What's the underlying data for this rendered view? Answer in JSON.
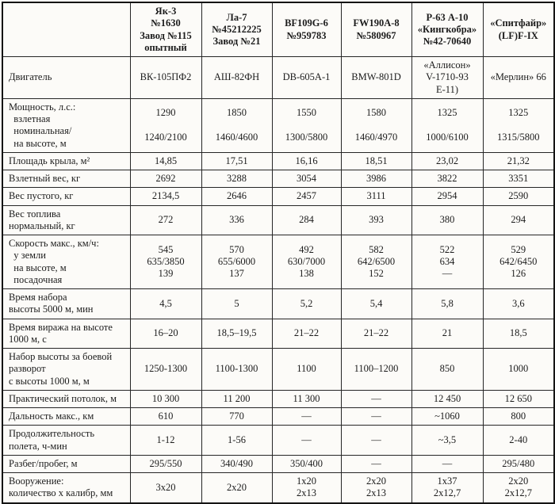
{
  "table": {
    "headers": [
      {
        "text": ""
      },
      {
        "text": "Як-3\n№1630\nЗавод №115\nопытный"
      },
      {
        "text": "Ла-7\n№45212225\nЗавод №21"
      },
      {
        "text": "BF109G-6\n№959783"
      },
      {
        "text": "FW190A-8\n№580967"
      },
      {
        "text": "Р-63 А-10\n«Кингкобра»\n№42-70640"
      },
      {
        "text": "«Спитфайр»\n(LF)F-IX"
      }
    ],
    "rows": [
      {
        "label": "Двигатель",
        "values": [
          "ВК-105ПФ2",
          "АШ-82ФН",
          "DB-605A-1",
          "BMW-801D",
          "«Аллисон»\nV-1710-93\nЕ-11)",
          "«Мерлин» 66"
        ]
      },
      {
        "label": "Мощность, л.с.:\n  взлетная\n  номинальная/\n  на высоте, м",
        "values": [
          "1290\n\n1240/2100",
          "1850\n\n1460/4600",
          "1550\n\n1300/5800",
          "1580\n\n1460/4970",
          "1325\n\n1000/6100",
          "1325\n\n1315/5800"
        ]
      },
      {
        "label": "Площадь крыла, м²",
        "values": [
          "14,85",
          "17,51",
          "16,16",
          "18,51",
          "23,02",
          "21,32"
        ]
      },
      {
        "label": "Взлетный вес, кг",
        "values": [
          "2692",
          "3288",
          "3054",
          "3986",
          "3822",
          "3351"
        ]
      },
      {
        "label": "Вес пустого, кг",
        "values": [
          "2134,5",
          "2646",
          "2457",
          "3111",
          "2954",
          "2590"
        ]
      },
      {
        "label": "Вес топлива\nнормальный, кг",
        "values": [
          "272",
          "336",
          "284",
          "393",
          "380",
          "294"
        ]
      },
      {
        "label": "Скорость макс., км/ч:\n  у земли\n  на высоте, м\n  посадочная",
        "values": [
          "545\n635/3850\n139",
          "570\n655/6000\n137",
          "492\n630/7000\n138",
          "582\n642/6500\n152",
          "522\n634\n—",
          "529\n642/6450\n126"
        ]
      },
      {
        "label": "Время набора\nвысоты 5000 м, мин",
        "values": [
          "4,5",
          "5",
          "5,2",
          "5,4",
          "5,8",
          "3,6"
        ]
      },
      {
        "label": "Время виража на высоте\n1000 м, с",
        "values": [
          "16–20",
          "18,5–19,5",
          "21–22",
          "21–22",
          "21",
          "18,5"
        ]
      },
      {
        "label": "Набор высоты за боевой\nразворот\nс высоты 1000 м, м",
        "values": [
          "1250-1300",
          "1100-1300",
          "1100",
          "1100–1200",
          "850",
          "1000"
        ]
      },
      {
        "label": "Практический потолок, м",
        "values": [
          "10 300",
          "11 200",
          "11 300",
          "—",
          "12 450",
          "12 650"
        ]
      },
      {
        "label": "Дальность макс., км",
        "values": [
          "610",
          "770",
          "—",
          "—",
          "~1060",
          "800"
        ]
      },
      {
        "label": "Продолжительность\nполета, ч-мин",
        "values": [
          "1-12",
          "1-56",
          "—",
          "—",
          "~3,5",
          "2-40"
        ]
      },
      {
        "label": "Разбег/пробег, м",
        "values": [
          "295/550",
          "340/490",
          "350/400",
          "—",
          "—",
          "295/480"
        ]
      },
      {
        "label": "Вооружение:\nколичество x калибр, мм",
        "values": [
          "3x20",
          "2x20",
          "1x20\n2x13",
          "2x20\n2x13",
          "1x37\n2x12,7",
          "2x20\n2x12,7"
        ]
      }
    ]
  }
}
